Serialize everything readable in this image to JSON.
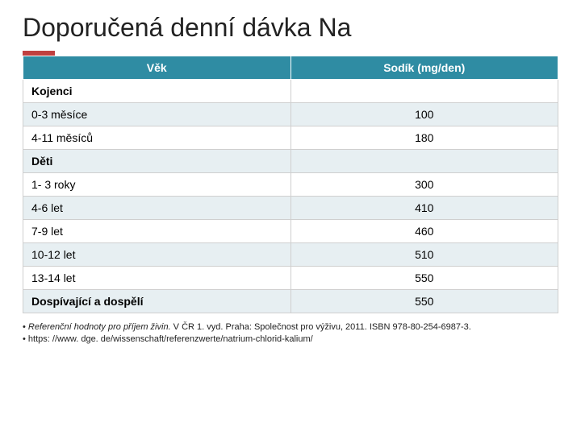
{
  "title": "Doporučená denní dávka Na",
  "header_bg": "#2f8ca3",
  "row_alt_bg": "#e7eff2",
  "columns": [
    "Věk",
    "Sodík (mg/den)"
  ],
  "rows": [
    {
      "age": "Kojenci",
      "value": "",
      "section": true
    },
    {
      "age": "0-3 měsíce",
      "value": "100",
      "section": false
    },
    {
      "age": "4-11 měsíců",
      "value": "180",
      "section": false
    },
    {
      "age": "Děti",
      "value": "",
      "section": true
    },
    {
      "age": "1- 3 roky",
      "value": "300",
      "section": false
    },
    {
      "age": "4-6 let",
      "value": "410",
      "section": false
    },
    {
      "age": "7-9 let",
      "value": "460",
      "section": false
    },
    {
      "age": "10-12 let",
      "value": "510",
      "section": false
    },
    {
      "age": "13-14 let",
      "value": "550",
      "section": false
    },
    {
      "age": "Dospívající a dospělí",
      "value": "550",
      "section": true
    }
  ],
  "references": {
    "line1_italic": "Referenční hodnoty pro příjem živin.",
    "line1_rest": " V ČR 1. vyd. Praha: Společnost pro výživu, 2011. ISBN 978-80-254-6987-3.",
    "line2": "https: //www. dge. de/wissenschaft/referenzwerte/natrium-chlorid-kalium/"
  }
}
